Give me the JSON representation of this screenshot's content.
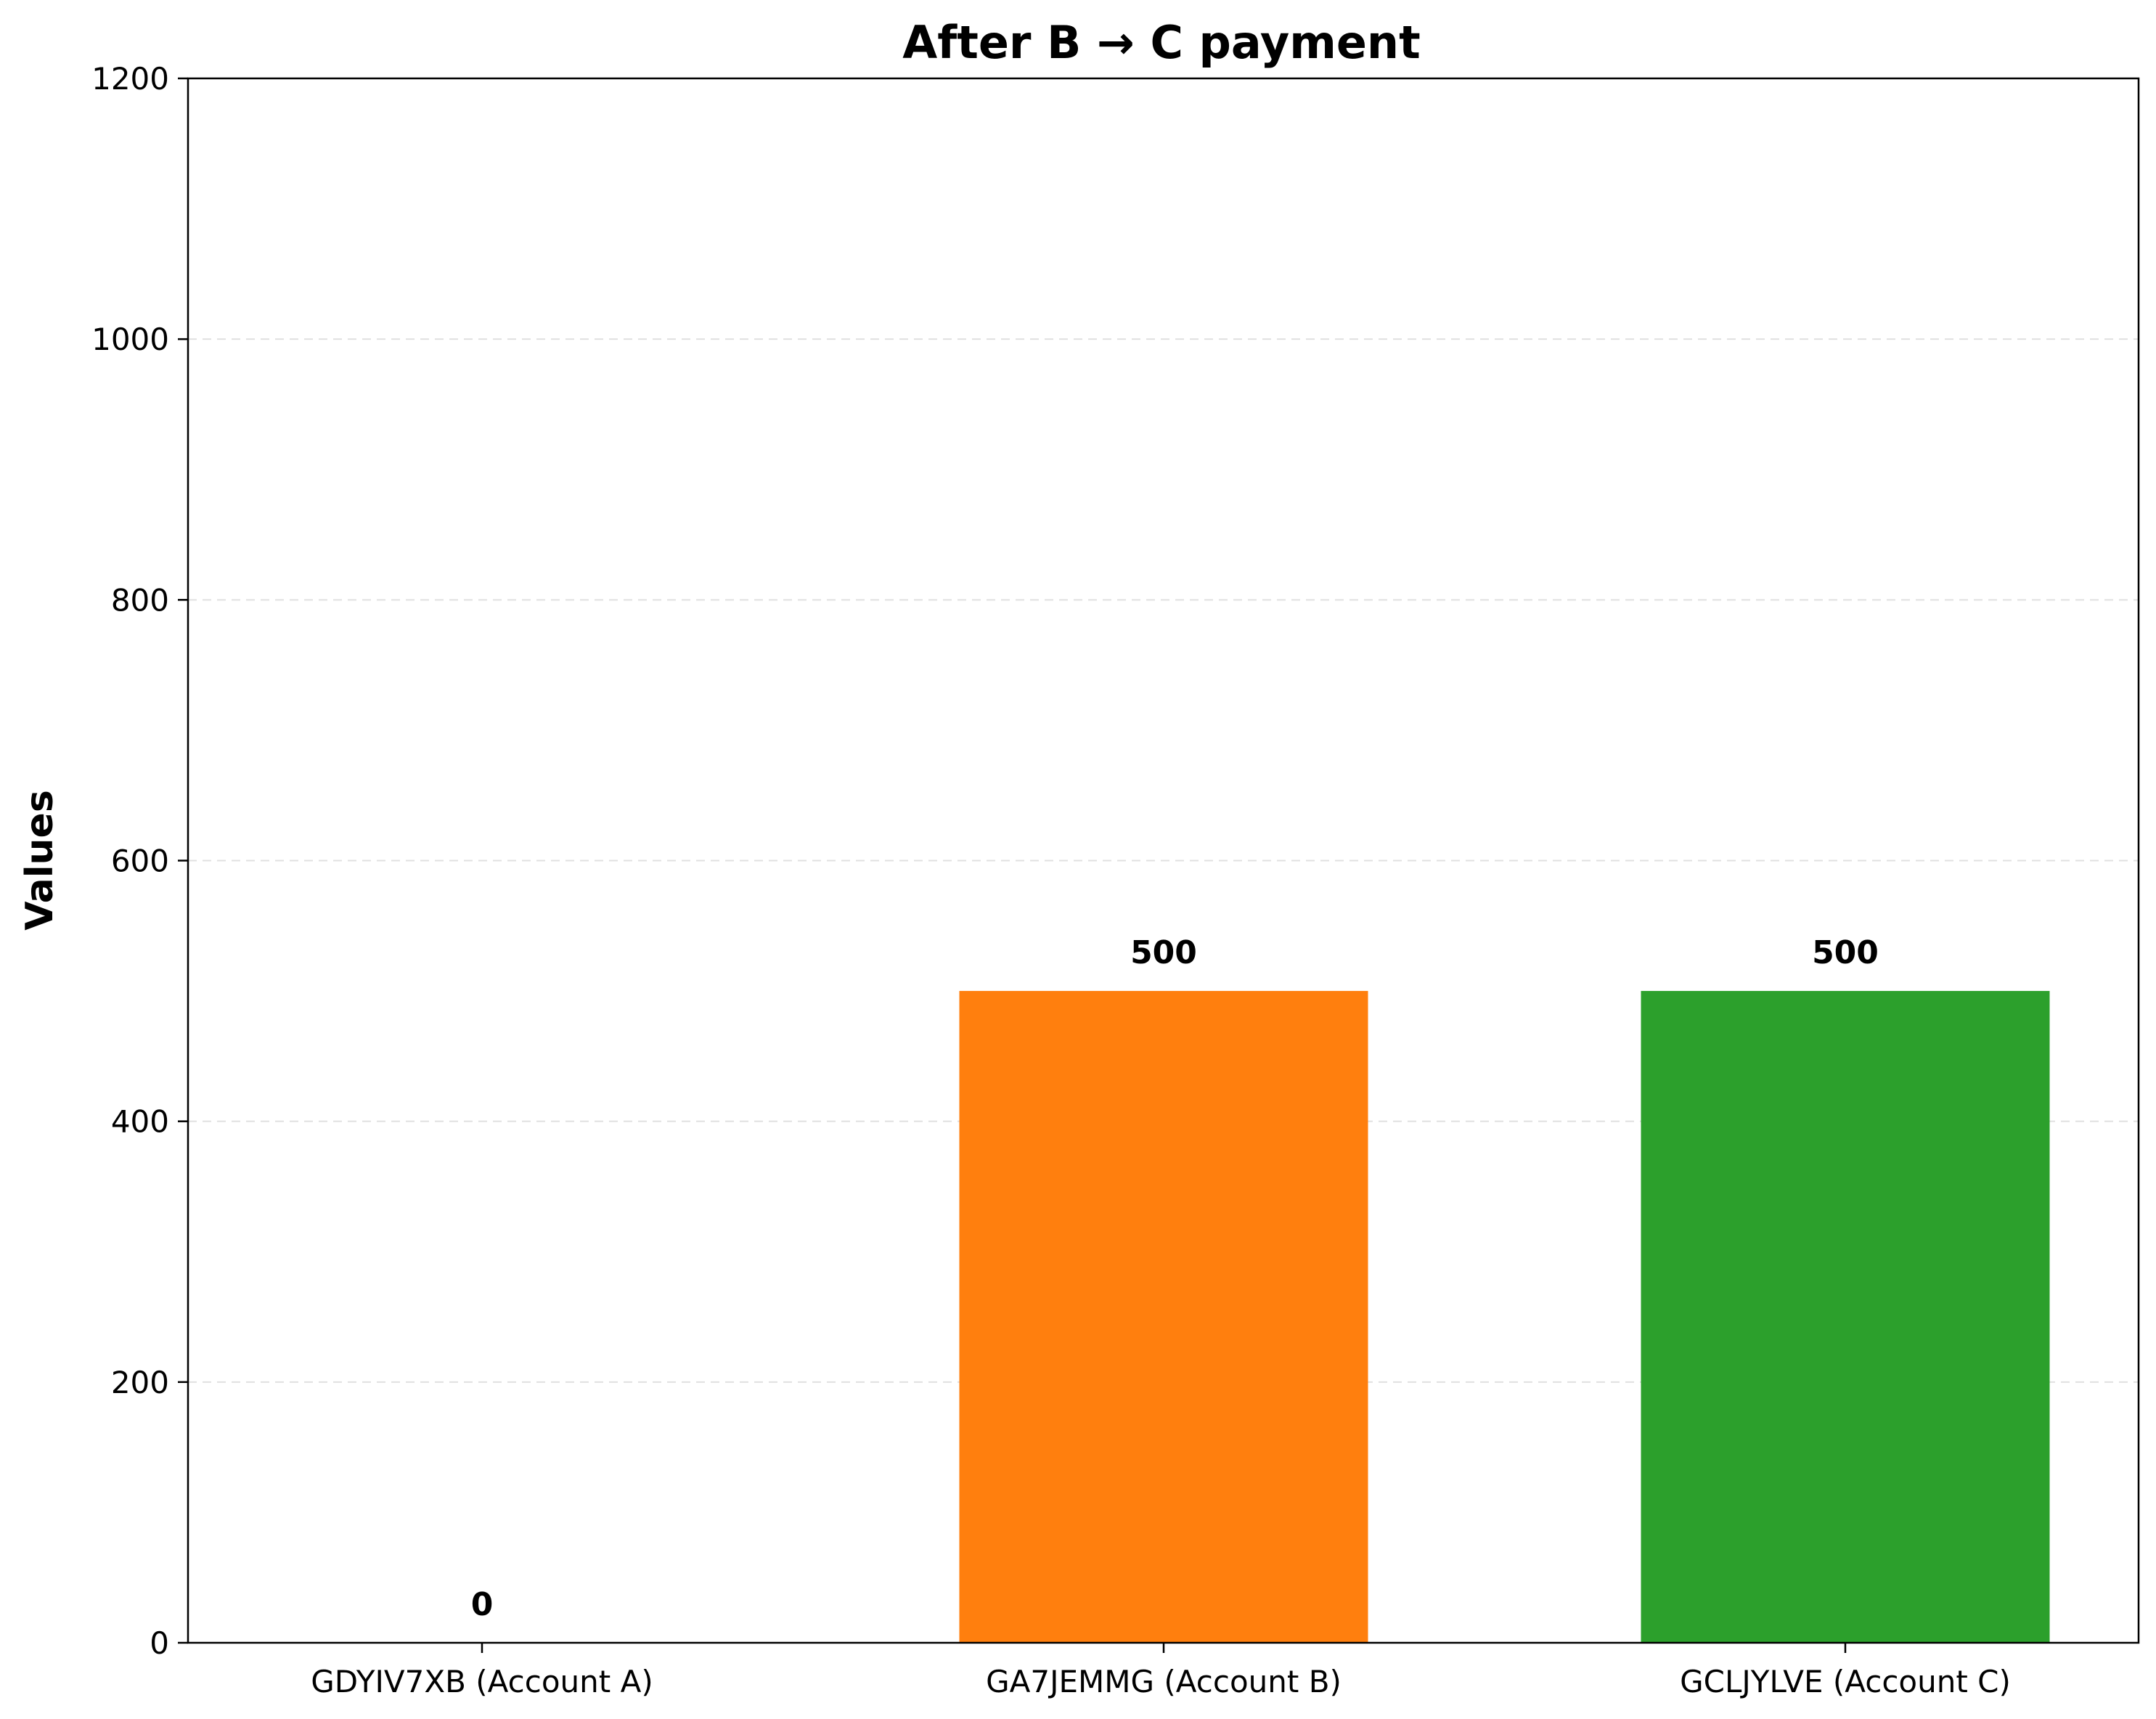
{
  "chart_data": {
    "type": "bar",
    "title": "After B → C payment",
    "xlabel": "",
    "ylabel": "Values",
    "ylim": [
      0,
      1200
    ],
    "yticks": [
      0,
      200,
      400,
      600,
      800,
      1000,
      1200
    ],
    "grid": "y-dashed",
    "categories": [
      "GDYIV7XB (Account A)",
      "GA7JEMMG (Account B)",
      "GCLJYLVE (Account C)"
    ],
    "values": [
      0,
      500,
      500
    ],
    "data_labels": [
      "0",
      "500",
      "500"
    ],
    "colors": [
      "#1f77b4",
      "#ff7f0e",
      "#2ca02c"
    ]
  }
}
